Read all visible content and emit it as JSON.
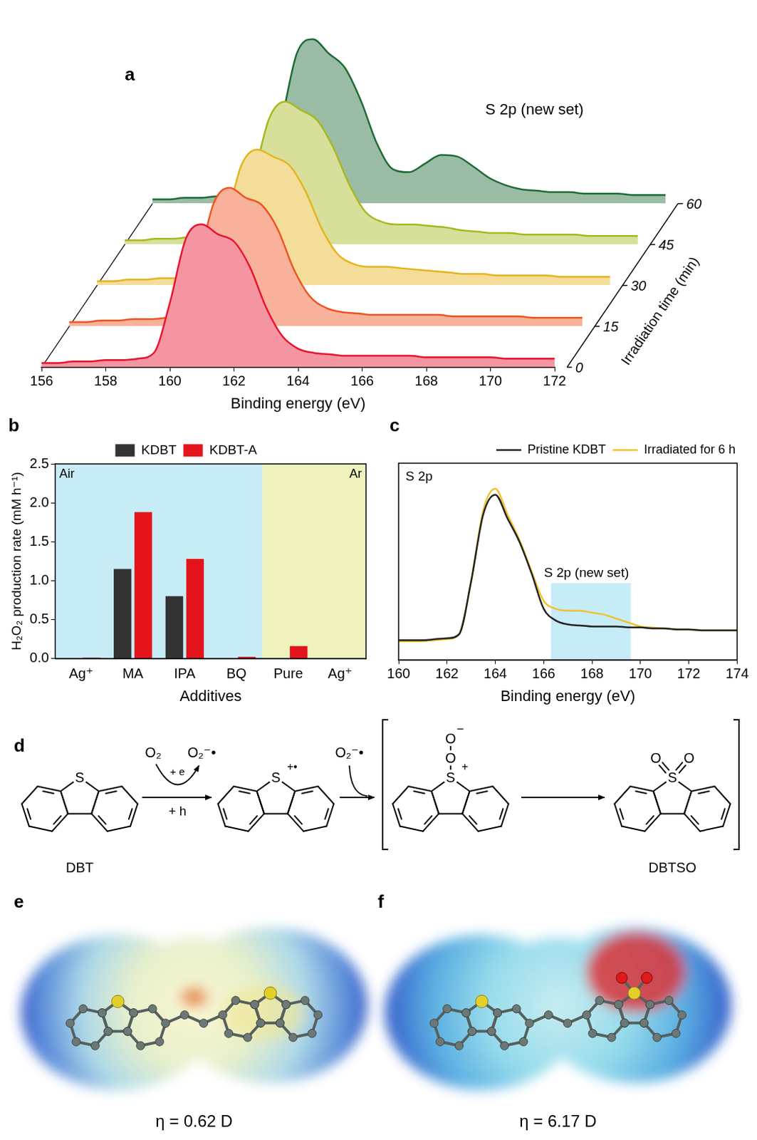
{
  "chart_data": [
    {
      "panel": "a",
      "type": "waterfall",
      "title": "S 2p (new set)",
      "x": [
        156,
        156.5,
        157,
        157.5,
        158,
        158.5,
        159,
        159.5,
        160,
        160.5,
        161,
        161.5,
        162,
        162.5,
        163,
        163.5,
        164,
        164.5,
        165,
        165.5,
        166,
        166.5,
        167,
        167.5,
        168,
        168.5,
        169,
        169.5,
        170,
        170.5,
        171,
        171.5,
        172
      ],
      "series": [
        {
          "time": 0,
          "color": "#e8132f",
          "values": [
            0.03,
            0.03,
            0.04,
            0.04,
            0.05,
            0.05,
            0.06,
            0.1,
            0.45,
            0.9,
            1.0,
            0.93,
            0.88,
            0.7,
            0.42,
            0.22,
            0.13,
            0.1,
            0.09,
            0.08,
            0.08,
            0.08,
            0.08,
            0.08,
            0.07,
            0.07,
            0.07,
            0.07,
            0.07,
            0.06,
            0.06,
            0.06,
            0.06
          ]
        },
        {
          "time": 15,
          "color": "#f0521e",
          "values": [
            0.03,
            0.03,
            0.04,
            0.04,
            0.05,
            0.05,
            0.06,
            0.1,
            0.42,
            0.86,
            0.97,
            0.9,
            0.85,
            0.68,
            0.4,
            0.21,
            0.13,
            0.1,
            0.09,
            0.08,
            0.08,
            0.08,
            0.08,
            0.08,
            0.07,
            0.07,
            0.07,
            0.07,
            0.07,
            0.06,
            0.06,
            0.06,
            0.06
          ]
        },
        {
          "time": 30,
          "color": "#e6b31c",
          "values": [
            0.03,
            0.03,
            0.04,
            0.04,
            0.05,
            0.05,
            0.06,
            0.1,
            0.42,
            0.84,
            0.95,
            0.9,
            0.84,
            0.66,
            0.4,
            0.22,
            0.15,
            0.13,
            0.13,
            0.12,
            0.11,
            0.1,
            0.09,
            0.08,
            0.08,
            0.07,
            0.07,
            0.07,
            0.07,
            0.06,
            0.06,
            0.06,
            0.06
          ]
        },
        {
          "time": 45,
          "color": "#a6b81e",
          "values": [
            0.03,
            0.03,
            0.04,
            0.04,
            0.05,
            0.05,
            0.06,
            0.1,
            0.45,
            0.88,
            1.0,
            0.94,
            0.87,
            0.68,
            0.42,
            0.23,
            0.16,
            0.14,
            0.14,
            0.13,
            0.12,
            0.1,
            0.09,
            0.08,
            0.08,
            0.07,
            0.07,
            0.07,
            0.07,
            0.06,
            0.06,
            0.06,
            0.06
          ]
        },
        {
          "time": 60,
          "color": "#1e6b35",
          "values": [
            0.03,
            0.03,
            0.04,
            0.04,
            0.05,
            0.05,
            0.06,
            0.12,
            0.55,
            1.05,
            1.15,
            1.05,
            0.95,
            0.72,
            0.42,
            0.24,
            0.22,
            0.28,
            0.34,
            0.33,
            0.26,
            0.18,
            0.13,
            0.1,
            0.09,
            0.08,
            0.08,
            0.07,
            0.07,
            0.07,
            0.06,
            0.06,
            0.06
          ]
        }
      ],
      "xlabel": "Binding energy (eV)",
      "xlim": [
        156,
        172
      ],
      "xticks": [
        156,
        158,
        160,
        162,
        164,
        166,
        168,
        170,
        172
      ],
      "ylim": [
        0,
        1.25
      ],
      "zlabel": "Irradiation time (min)",
      "zlim": [
        0,
        60
      ],
      "zticks": [
        0,
        15,
        30,
        45,
        60
      ],
      "tick_labels": "x",
      "grid": false
    },
    {
      "panel": "b",
      "type": "bar",
      "categories": [
        "Ag⁺",
        "MA",
        "IPA",
        "BQ",
        "Pure",
        "Ag⁺"
      ],
      "series": [
        {
          "name": "KDBT",
          "color": "#333333",
          "values": [
            0.005,
            1.15,
            0.8,
            0.005,
            0.005,
            0
          ]
        },
        {
          "name": "KDBT-A",
          "color": "#e3141b",
          "values": [
            0.01,
            1.88,
            1.28,
            0.02,
            0.16,
            0
          ]
        }
      ],
      "regions": [
        {
          "label": "Air",
          "start": 0,
          "end": 3,
          "color": "#c8ecf6"
        },
        {
          "label": "Ar",
          "start": 4,
          "end": 5,
          "color": "#eff2bd"
        }
      ],
      "xlabel": "Additives",
      "ylabel": "H₂O₂ production rate (mM h⁻¹)",
      "ylim": [
        0,
        2.5
      ],
      "yticks": [
        {
          "value": 0,
          "label": "0.0"
        },
        0.5,
        {
          "value": 1,
          "label": "1.0"
        },
        1.5,
        {
          "value": 2,
          "label": "2.0"
        },
        2.5
      ],
      "legend": "top",
      "grid": false
    },
    {
      "panel": "c",
      "type": "line",
      "title": "S 2p",
      "x": [
        160,
        160.5,
        161,
        161.5,
        162,
        162.5,
        163,
        163.5,
        164,
        164.5,
        165,
        165.5,
        166,
        166.5,
        167,
        167.5,
        168,
        168.5,
        169,
        169.5,
        170,
        170.5,
        171,
        171.5,
        172,
        172.5,
        173,
        173.5,
        174
      ],
      "series": [
        {
          "name": "Pristine KDBT",
          "color": "#222222",
          "values": [
            0.1,
            0.1,
            0.1,
            0.105,
            0.11,
            0.13,
            0.4,
            0.74,
            0.84,
            0.72,
            0.6,
            0.44,
            0.26,
            0.2,
            0.18,
            0.175,
            0.17,
            0.17,
            0.17,
            0.165,
            0.165,
            0.16,
            0.16,
            0.155,
            0.155,
            0.15,
            0.15,
            0.15,
            0.15
          ]
        },
        {
          "name": "Irradiated for 6 h",
          "color": "#f2c12e",
          "values": [
            0.095,
            0.095,
            0.095,
            0.1,
            0.105,
            0.13,
            0.4,
            0.76,
            0.87,
            0.74,
            0.61,
            0.45,
            0.3,
            0.26,
            0.25,
            0.25,
            0.24,
            0.23,
            0.21,
            0.19,
            0.17,
            0.165,
            0.16,
            0.155,
            0.155,
            0.15,
            0.15,
            0.15,
            0.15
          ]
        }
      ],
      "highlight": {
        "label": "S 2p (new set)",
        "x": [
          166.3,
          169.6
        ],
        "y": [
          0,
          0.39
        ],
        "color": "#c6ecf8"
      },
      "xlabel": "Binding energy (eV)",
      "xlim": [
        160,
        174
      ],
      "xticks": [
        160,
        162,
        164,
        166,
        168,
        170,
        172,
        174
      ],
      "ylim": [
        0,
        1
      ],
      "tick_labels": "x",
      "legend": "top",
      "grid": false
    }
  ],
  "scheme": {
    "panel": "d",
    "molecules": [
      {
        "atom": "S",
        "name": "DBT"
      },
      {
        "atom": "S",
        "charge": "+•"
      },
      {
        "atom": "S",
        "charge": "+",
        "substituents": [
          "O",
          "O"
        ],
        "substituent_charge": "−",
        "bracket": true
      },
      {
        "atom": "S",
        "substituents": [
          "O",
          "O"
        ],
        "name": "DBTSO",
        "bracket": true
      }
    ],
    "steps": [
      {
        "reactant": "O₂",
        "product": "O₂⁻•",
        "above": "+ e",
        "below": "+ h"
      },
      {
        "reactant": "O₂⁻•"
      }
    ]
  },
  "surfaces": [
    {
      "panel": "e",
      "label": "η = 0.62 D",
      "sulfone": false
    },
    {
      "panel": "f",
      "label": "η = 6.17 D",
      "sulfone": true
    }
  ]
}
